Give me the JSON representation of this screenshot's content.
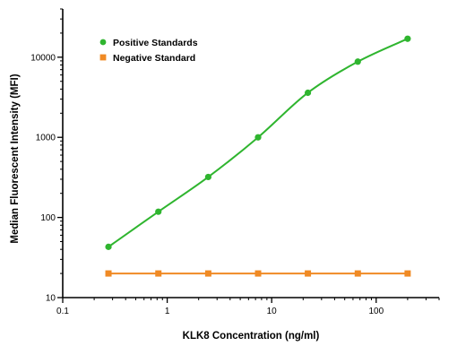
{
  "chart_data": {
    "type": "line",
    "title": "",
    "xlabel": "KLK8 Concentration (ng/ml)",
    "ylabel": "Median Fluorescent Intensity (MFI)",
    "x_scale": "log",
    "y_scale": "log",
    "xlim": [
      0.1,
      400
    ],
    "ylim": [
      10,
      40000
    ],
    "x_ticks": [
      0.1,
      1,
      10,
      100
    ],
    "x_tick_labels": [
      "0.1",
      "1",
      "10",
      "100"
    ],
    "y_ticks": [
      10,
      100,
      1000,
      10000
    ],
    "y_tick_labels": [
      "10",
      "100",
      "1000",
      "10000"
    ],
    "grid": false,
    "legend_position": "top-left",
    "series": [
      {
        "name": "Positive Standards",
        "color": "#2fb52f",
        "marker": "circle",
        "x": [
          0.274,
          0.823,
          2.47,
          7.41,
          22.2,
          66.7,
          200
        ],
        "y": [
          43,
          118,
          320,
          1000,
          3600,
          8800,
          17000
        ]
      },
      {
        "name": "Negative Standard",
        "color": "#f08a24",
        "marker": "square",
        "x": [
          0.274,
          0.823,
          2.47,
          7.41,
          22.2,
          66.7,
          200
        ],
        "y": [
          20,
          20,
          20,
          20,
          20,
          20,
          20
        ]
      }
    ]
  }
}
